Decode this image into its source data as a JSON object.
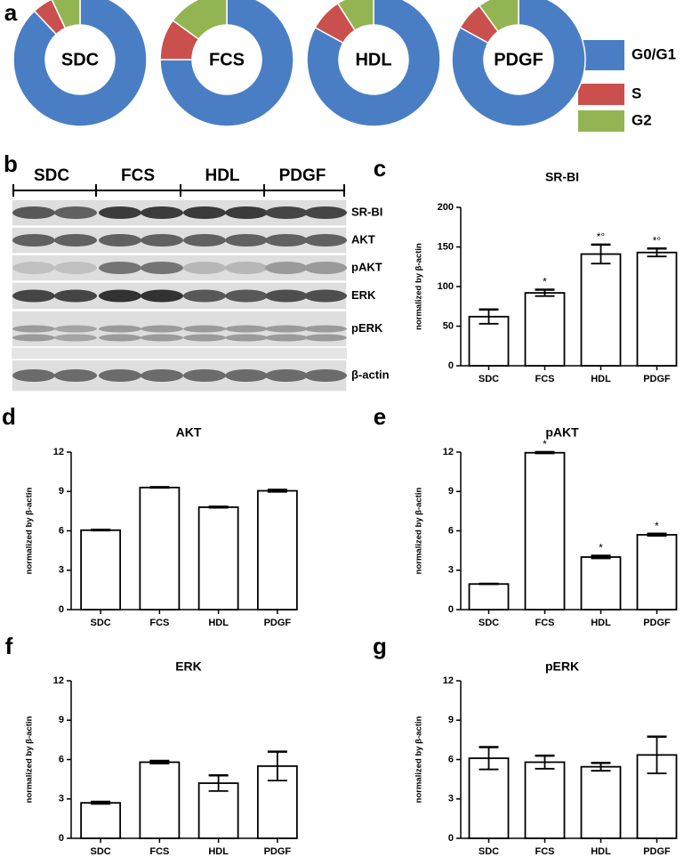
{
  "panel_labels": [
    "a",
    "b",
    "c",
    "d",
    "e",
    "f",
    "g"
  ],
  "pie_legend": {
    "categories": [
      "G0/G1",
      "S",
      "G2"
    ],
    "colors": [
      "#4a7ec4",
      "#c9504d",
      "#93b452"
    ]
  },
  "blot": {
    "groups": [
      "SDC",
      "FCS",
      "HDL",
      "PDGF"
    ],
    "bands": [
      "SR-BI",
      "AKT",
      "pAKT",
      "ERK",
      "pERK",
      "β-actin"
    ]
  },
  "chart_data": [
    {
      "type": "donut",
      "center_label": "SDC",
      "values": [
        88,
        5,
        7
      ]
    },
    {
      "type": "donut",
      "center_label": "FCS",
      "values": [
        75,
        10,
        15
      ]
    },
    {
      "type": "donut",
      "center_label": "HDL",
      "values": [
        83,
        8,
        9
      ]
    },
    {
      "type": "donut",
      "center_label": "PDGF",
      "values": [
        83,
        7,
        10
      ]
    },
    {
      "type": "bar",
      "title": "SR-BI",
      "ylabel": "normalized by β-actin",
      "categories": [
        "SDC",
        "FCS",
        "HDL",
        "PDGF"
      ],
      "values": [
        62,
        92,
        141,
        143
      ],
      "errors": [
        9,
        4,
        12,
        5
      ],
      "markers": [
        null,
        "*",
        "*°",
        "*°"
      ],
      "ylim": [
        0,
        200
      ],
      "yticks": [
        0,
        50,
        100,
        150,
        200
      ]
    },
    {
      "type": "bar",
      "title": "AKT",
      "ylabel": "normalized by β-actin",
      "categories": [
        "SDC",
        "FCS",
        "HDL",
        "PDGF"
      ],
      "values": [
        6.05,
        9.3,
        7.8,
        9.05
      ],
      "errors": [
        0.03,
        0.03,
        0.04,
        0.08
      ],
      "markers": [
        null,
        null,
        null,
        null
      ],
      "ylim": [
        0,
        12
      ],
      "yticks": [
        0,
        3,
        6,
        9,
        12
      ]
    },
    {
      "type": "bar",
      "title": "pAKT",
      "ylabel": "normalized by β-actin",
      "categories": [
        "SDC",
        "FCS",
        "HDL",
        "PDGF"
      ],
      "values": [
        1.95,
        11.95,
        4.0,
        5.7
      ],
      "errors": [
        0.02,
        0.05,
        0.1,
        0.08
      ],
      "markers": [
        null,
        "*",
        "*",
        "*"
      ],
      "ylim": [
        0,
        12
      ],
      "yticks": [
        0,
        3,
        6,
        9,
        12
      ]
    },
    {
      "type": "bar",
      "title": "ERK",
      "ylabel": "normalized by β-actin",
      "categories": [
        "SDC",
        "FCS",
        "HDL",
        "PDGF"
      ],
      "values": [
        2.7,
        5.8,
        4.2,
        5.5
      ],
      "errors": [
        0.08,
        0.1,
        0.6,
        1.1
      ],
      "markers": [
        null,
        null,
        null,
        null
      ],
      "ylim": [
        0,
        12
      ],
      "yticks": [
        0,
        3,
        6,
        9,
        12
      ]
    },
    {
      "type": "bar",
      "title": "pERK",
      "ylabel": "normalized by β-actin",
      "categories": [
        "SDC",
        "FCS",
        "HDL",
        "PDGF"
      ],
      "values": [
        6.1,
        5.8,
        5.45,
        6.35
      ],
      "errors": [
        0.85,
        0.5,
        0.3,
        1.4
      ],
      "markers": [
        null,
        null,
        null,
        null
      ],
      "ylim": [
        0,
        12
      ],
      "yticks": [
        0,
        3,
        6,
        9,
        12
      ]
    }
  ]
}
